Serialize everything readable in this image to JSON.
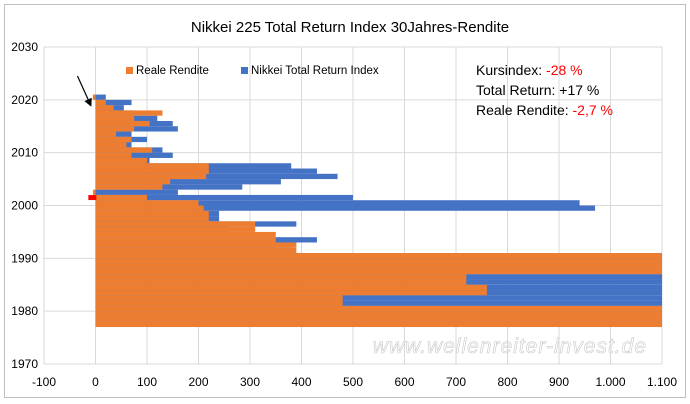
{
  "chart_data": {
    "type": "bar",
    "orientation": "horizontal",
    "title": "Nikkei 225 Total Return Index 30Jahres-Rendite",
    "xlabel": "",
    "ylabel": "",
    "xlim": [
      -100,
      1100
    ],
    "ylim": [
      1970,
      2030
    ],
    "x_tick_labels": [
      "-100",
      "0",
      "100",
      "200",
      "300",
      "400",
      "500",
      "600",
      "700",
      "800",
      "900",
      "1.000",
      "1.100"
    ],
    "y_tick_labels": [
      "1970",
      "1980",
      "1990",
      "2000",
      "2010",
      "2020",
      "2030"
    ],
    "grid": "vertical and horizontal, light gray",
    "legend_position": "top-left inside plot",
    "series": [
      {
        "name": "Reale Rendite",
        "color": "#ED7D31",
        "start_year": 1977,
        "values": [
          1100,
          1100,
          1100,
          1100,
          480,
          480,
          760,
          760,
          720,
          720,
          1100,
          1100,
          1100,
          1100,
          390,
          390,
          350,
          350,
          310,
          310,
          220,
          220,
          210,
          200,
          100,
          -5,
          130,
          145,
          215,
          220,
          220,
          100,
          70,
          110,
          60,
          70,
          40,
          75,
          105,
          75,
          130,
          35,
          20,
          -5
        ]
      },
      {
        "name": "Nikkei Total Return Index",
        "color": "#4472C4",
        "start_year": 1977,
        "values": [
          1100,
          1100,
          1100,
          1100,
          1100,
          1100,
          1100,
          1100,
          1100,
          1100,
          1100,
          1100,
          1100,
          1100,
          380,
          350,
          430,
          300,
          260,
          390,
          240,
          240,
          970,
          940,
          500,
          160,
          285,
          360,
          470,
          430,
          380,
          105,
          150,
          130,
          70,
          100,
          70,
          160,
          150,
          120,
          75,
          55,
          70,
          20
        ]
      },
      {
        "name": "Kursindex (2002 marker)",
        "color": "#FF0000",
        "points": [
          {
            "year": 2001.6,
            "x": -10
          }
        ]
      }
    ],
    "annotations": [
      {
        "label": "Kursindex: ",
        "value": "-28 %",
        "value_color": "#FF0000"
      },
      {
        "label": "Total Return: ",
        "value": "+17 %",
        "value_color": "#000000"
      },
      {
        "label": "Reale Rendite: ",
        "value": "-2,7 %",
        "value_color": "#FF0000"
      }
    ],
    "watermark": "www.wellenreiter-invest.de",
    "arrow": {
      "from": {
        "year": 2024.5,
        "x": -35
      },
      "to": {
        "year": 2018.7,
        "x": -8
      }
    }
  }
}
